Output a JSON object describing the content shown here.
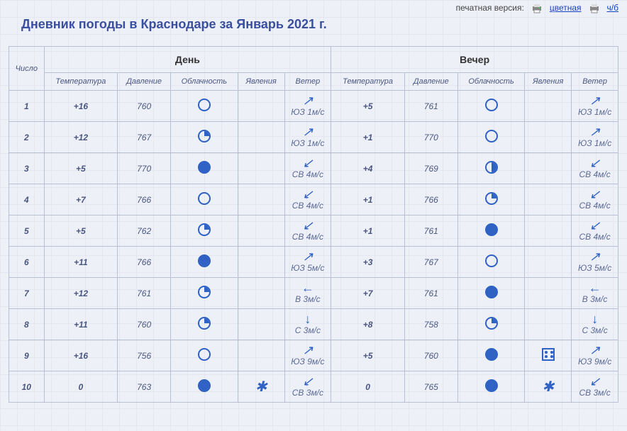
{
  "topbar": {
    "label": "печатная версия:",
    "link_color": "цветная",
    "link_bw": "ч/б"
  },
  "title": "Дневник погоды в Краснодаре за Январь 2021 г.",
  "headers": {
    "day_num": "Число",
    "day_section": "День",
    "evening_section": "Вечер",
    "temp": "Температура",
    "pressure": "Давление",
    "clouds": "Облачность",
    "phenom": "Явления",
    "wind": "Ветер"
  },
  "arrows": {
    "NE": "↗",
    "SW": "↙",
    "W": "←",
    "S": "↓"
  },
  "rows": [
    {
      "n": "1",
      "d": {
        "t": "+16",
        "p": "760",
        "c": "clear",
        "ph": "",
        "w": {
          "dir": "NE",
          "txt": "ЮЗ 1м/с"
        }
      },
      "e": {
        "t": "+5",
        "p": "761",
        "c": "clear",
        "ph": "",
        "w": {
          "dir": "NE",
          "txt": "ЮЗ 1м/с"
        }
      }
    },
    {
      "n": "2",
      "d": {
        "t": "+12",
        "p": "767",
        "c": "q1",
        "ph": "",
        "w": {
          "dir": "NE",
          "txt": "ЮЗ 1м/с"
        }
      },
      "e": {
        "t": "+1",
        "p": "770",
        "c": "clear",
        "ph": "",
        "w": {
          "dir": "NE",
          "txt": "ЮЗ 1м/с"
        }
      }
    },
    {
      "n": "3",
      "d": {
        "t": "+5",
        "p": "770",
        "c": "full",
        "ph": "",
        "w": {
          "dir": "SW",
          "txt": "СВ 4м/с"
        }
      },
      "e": {
        "t": "+4",
        "p": "769",
        "c": "half",
        "ph": "",
        "w": {
          "dir": "SW",
          "txt": "СВ 4м/с"
        }
      }
    },
    {
      "n": "4",
      "d": {
        "t": "+7",
        "p": "766",
        "c": "clear",
        "ph": "",
        "w": {
          "dir": "SW",
          "txt": "СВ 4м/с"
        }
      },
      "e": {
        "t": "+1",
        "p": "766",
        "c": "q1",
        "ph": "",
        "w": {
          "dir": "SW",
          "txt": "СВ 4м/с"
        }
      }
    },
    {
      "n": "5",
      "d": {
        "t": "+5",
        "p": "762",
        "c": "q1",
        "ph": "",
        "w": {
          "dir": "SW",
          "txt": "СВ 4м/с"
        }
      },
      "e": {
        "t": "+1",
        "p": "761",
        "c": "full",
        "ph": "",
        "w": {
          "dir": "SW",
          "txt": "СВ 4м/с"
        }
      }
    },
    {
      "n": "6",
      "d": {
        "t": "+11",
        "p": "766",
        "c": "full",
        "ph": "",
        "w": {
          "dir": "NE",
          "txt": "ЮЗ 5м/с"
        }
      },
      "e": {
        "t": "+3",
        "p": "767",
        "c": "clear",
        "ph": "",
        "w": {
          "dir": "NE",
          "txt": "ЮЗ 5м/с"
        }
      }
    },
    {
      "n": "7",
      "d": {
        "t": "+12",
        "p": "761",
        "c": "q1",
        "ph": "",
        "w": {
          "dir": "W",
          "txt": "В 3м/с"
        }
      },
      "e": {
        "t": "+7",
        "p": "761",
        "c": "full",
        "ph": "",
        "w": {
          "dir": "W",
          "txt": "В 3м/с"
        }
      }
    },
    {
      "n": "8",
      "d": {
        "t": "+11",
        "p": "760",
        "c": "q1",
        "ph": "",
        "w": {
          "dir": "S",
          "txt": "С 3м/с"
        }
      },
      "e": {
        "t": "+8",
        "p": "758",
        "c": "q1",
        "ph": "",
        "w": {
          "dir": "S",
          "txt": "С 3м/с"
        }
      }
    },
    {
      "n": "9",
      "d": {
        "t": "+16",
        "p": "756",
        "c": "clear",
        "ph": "",
        "w": {
          "dir": "NE",
          "txt": "ЮЗ 9м/с"
        }
      },
      "e": {
        "t": "+5",
        "p": "760",
        "c": "full",
        "ph": "heavy",
        "w": {
          "dir": "NE",
          "txt": "ЮЗ 9м/с"
        }
      }
    },
    {
      "n": "10",
      "d": {
        "t": "0",
        "p": "763",
        "c": "full",
        "ph": "snow",
        "w": {
          "dir": "SW",
          "txt": "СВ 3м/с"
        }
      },
      "e": {
        "t": "0",
        "p": "765",
        "c": "full",
        "ph": "snow",
        "w": {
          "dir": "SW",
          "txt": "СВ 3м/с"
        }
      }
    }
  ]
}
